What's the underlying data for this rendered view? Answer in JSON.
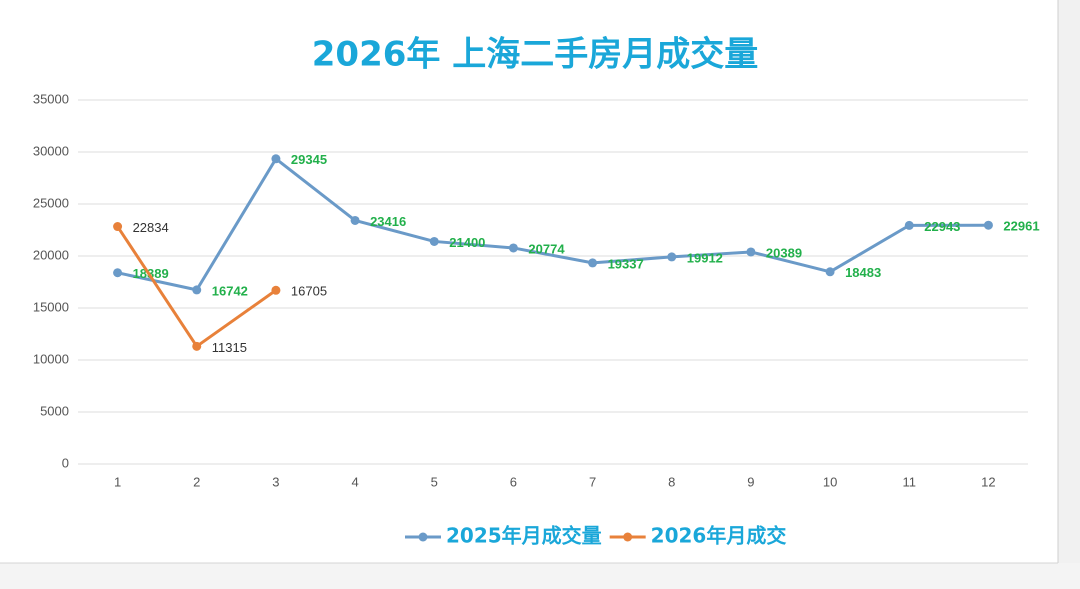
{
  "chart_data": {
    "type": "line",
    "title": "2026年 上海二手房月成交量",
    "categories": [
      "1",
      "2",
      "3",
      "4",
      "5",
      "6",
      "7",
      "8",
      "9",
      "10",
      "11",
      "12"
    ],
    "series": [
      {
        "name": "2025年月成交量",
        "color": "#6a9ac8",
        "label_color": "#22b04b",
        "values": [
          18389,
          16742,
          29345,
          23416,
          21400,
          20774,
          19337,
          19912,
          20389,
          18483,
          22943,
          22961
        ]
      },
      {
        "name": "2026年月成交",
        "color": "#e8813a",
        "label_color": "#333333",
        "values": [
          22834,
          11315,
          16705,
          null,
          null,
          null,
          null,
          null,
          null,
          null,
          null,
          null
        ]
      }
    ],
    "ylim": [
      0,
      35000
    ],
    "yticks": [
      0,
      5000,
      10000,
      15000,
      20000,
      25000,
      30000,
      35000
    ],
    "grid": true,
    "legend": "bottom"
  }
}
